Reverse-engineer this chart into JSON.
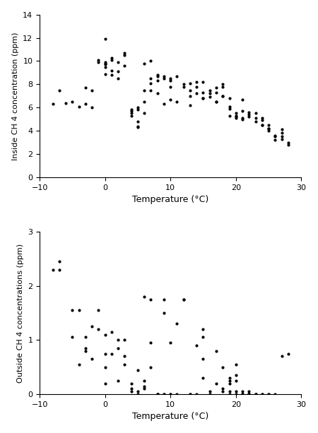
{
  "inside_x": [
    -8,
    -7,
    -6,
    -5,
    -4,
    -3,
    -3,
    -2,
    -2,
    -1,
    -1,
    0,
    0,
    0,
    0,
    0,
    0,
    1,
    1,
    1,
    1,
    2,
    2,
    2,
    3,
    3,
    3,
    4,
    4,
    4,
    4,
    5,
    5,
    5,
    5,
    5,
    6,
    6,
    6,
    6,
    7,
    7,
    7,
    7,
    8,
    8,
    8,
    8,
    9,
    9,
    9,
    10,
    10,
    10,
    10,
    11,
    11,
    12,
    12,
    13,
    13,
    13,
    13,
    14,
    14,
    14,
    15,
    15,
    15,
    15,
    16,
    16,
    16,
    17,
    17,
    17,
    17,
    18,
    18,
    18,
    18,
    19,
    19,
    19,
    19,
    20,
    20,
    20,
    20,
    21,
    21,
    21,
    21,
    22,
    22,
    22,
    23,
    23,
    23,
    24,
    24,
    24,
    24,
    25,
    25,
    25,
    25,
    26,
    26,
    26,
    27,
    27,
    27,
    27,
    28,
    28
  ],
  "inside_y": [
    6.3,
    7.5,
    6.4,
    6.5,
    6.1,
    6.3,
    7.7,
    6.0,
    7.5,
    9.9,
    10.1,
    9.8,
    9.9,
    9.7,
    9.5,
    8.9,
    11.9,
    10.1,
    10.3,
    9.2,
    8.8,
    8.5,
    9.1,
    9.9,
    9.6,
    10.5,
    10.7,
    5.8,
    5.7,
    5.3,
    5.5,
    4.3,
    4.8,
    5.8,
    6.0,
    4.4,
    7.5,
    6.5,
    5.5,
    9.8,
    8.1,
    8.5,
    7.5,
    10.0,
    8.3,
    8.8,
    7.2,
    8.7,
    8.5,
    8.7,
    6.3,
    8.3,
    8.5,
    6.7,
    7.8,
    8.7,
    6.5,
    8.0,
    7.8,
    7.5,
    8.1,
    7.0,
    6.2,
    8.2,
    7.2,
    7.8,
    6.8,
    7.3,
    6.8,
    8.2,
    7.5,
    7.2,
    6.9,
    7.3,
    6.5,
    7.7,
    6.5,
    8.0,
    7.0,
    7.8,
    7.0,
    6.1,
    5.3,
    6.8,
    5.9,
    5.5,
    5.3,
    5.2,
    5.1,
    6.7,
    5.7,
    5.0,
    5.1,
    5.6,
    5.4,
    5.2,
    5.5,
    5.1,
    4.8,
    4.5,
    5.1,
    4.9,
    4.5,
    4.2,
    4.0,
    4.2,
    4.5,
    3.6,
    3.5,
    3.2,
    4.1,
    3.5,
    3.8,
    3.3,
    3.0,
    2.8
  ],
  "outside_x": [
    -8,
    -7,
    -7,
    -5,
    -5,
    -4,
    -4,
    -3,
    -3,
    -3,
    -2,
    -2,
    -1,
    -1,
    0,
    0,
    0,
    0,
    1,
    1,
    2,
    2,
    2,
    3,
    3,
    3,
    4,
    4,
    4,
    5,
    5,
    5,
    6,
    6,
    6,
    6,
    7,
    7,
    7,
    8,
    8,
    8,
    9,
    9,
    9,
    9,
    10,
    10,
    10,
    11,
    11,
    12,
    12,
    13,
    13,
    14,
    14,
    15,
    15,
    15,
    15,
    16,
    16,
    17,
    17,
    18,
    18,
    18,
    19,
    19,
    19,
    19,
    19,
    20,
    20,
    20,
    20,
    20,
    21,
    21,
    21,
    21,
    22,
    22,
    22,
    22,
    22,
    23,
    23,
    23,
    24,
    24,
    25,
    25,
    26,
    27,
    28
  ],
  "outside_y": [
    2.3,
    2.45,
    2.3,
    1.05,
    1.55,
    1.55,
    0.55,
    1.05,
    0.85,
    0.8,
    1.25,
    0.65,
    1.2,
    1.55,
    1.1,
    0.75,
    0.5,
    0.2,
    0.75,
    1.15,
    0.85,
    1.0,
    0.25,
    1.0,
    0.7,
    0.55,
    0.05,
    0.1,
    0.2,
    0.0,
    0.05,
    0.45,
    1.8,
    0.25,
    0.1,
    0.15,
    1.75,
    0.95,
    0.5,
    0.0,
    0.0,
    0.0,
    1.5,
    1.75,
    0.0,
    0.0,
    0.95,
    0.0,
    0.0,
    1.3,
    0.0,
    1.75,
    1.75,
    0.0,
    0.0,
    0.9,
    0.0,
    1.05,
    1.2,
    0.65,
    0.3,
    0.05,
    0.0,
    0.2,
    0.8,
    0.1,
    0.5,
    0.05,
    0.2,
    0.3,
    0.05,
    0.0,
    0.25,
    0.35,
    0.55,
    0.25,
    0.05,
    0.0,
    0.05,
    0.0,
    0.0,
    0.0,
    0.0,
    0.0,
    0.05,
    0.0,
    0.0,
    0.0,
    0.0,
    0.0,
    0.0,
    0.0,
    0.0,
    0.0,
    0.0,
    0.7,
    0.75
  ],
  "inside_xlim": [
    -10,
    30
  ],
  "inside_ylim": [
    0,
    14
  ],
  "outside_xlim": [
    -10,
    30
  ],
  "outside_ylim": [
    0,
    3
  ],
  "inside_xlabel": "Temperature (°C)",
  "inside_ylabel": "Inside CH 4 concentration (ppm)",
  "outside_xlabel": "Temperature (°C)",
  "outside_ylabel": "Outside CH 4 concentrations (ppm)",
  "marker_color": "black",
  "marker_size": 16,
  "inside_xticks": [
    -10,
    0,
    10,
    20,
    30
  ],
  "inside_yticks": [
    0,
    2,
    4,
    6,
    8,
    10,
    12,
    14
  ],
  "outside_xticks": [
    -10,
    0,
    10,
    20,
    30
  ],
  "outside_yticks": [
    0,
    1,
    2,
    3
  ]
}
